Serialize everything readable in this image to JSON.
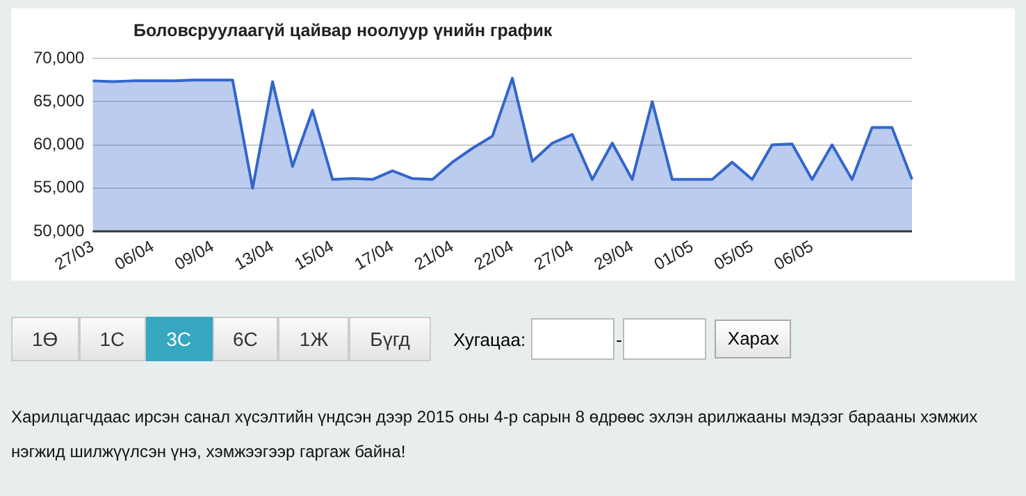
{
  "chart_data": {
    "type": "area",
    "title": "Боловсруулаагүй цайвар ноолуур үнийн график",
    "categories": [
      "27/03",
      null,
      null,
      "06/04",
      null,
      null,
      "09/04",
      null,
      null,
      "13/04",
      null,
      null,
      "15/04",
      null,
      null,
      "17/04",
      null,
      null,
      "21/04",
      null,
      null,
      "22/04",
      null,
      null,
      "27/04",
      null,
      null,
      "29/04",
      null,
      null,
      "01/05",
      null,
      null,
      "05/05",
      null,
      null,
      "06/05",
      null,
      null,
      null,
      null,
      null
    ],
    "series": [
      {
        "color": "#3366cc",
        "values": [
          67400,
          67300,
          67400,
          67400,
          67400,
          67500,
          67500,
          67500,
          55000,
          67300,
          57500,
          64000,
          56000,
          56100,
          56000,
          57000,
          56100,
          56000,
          58000,
          59600,
          61000,
          67700,
          58100,
          60200,
          61200,
          56000,
          60200,
          56000,
          65000,
          56000,
          56000,
          56000,
          58000,
          56000,
          60000,
          60100,
          56000,
          60000,
          56000,
          62000,
          62000,
          56000
        ]
      }
    ],
    "ylim": [
      50000,
      70000
    ],
    "yticks": [
      {
        "value": 50000,
        "label": "50,000"
      },
      {
        "value": 55000,
        "label": "55,000"
      },
      {
        "value": 60000,
        "label": "60,000"
      },
      {
        "value": 65000,
        "label": "65,000"
      },
      {
        "value": 70000,
        "label": "70,000"
      }
    ],
    "grid": "y",
    "legend": false,
    "marker": "none",
    "line_style": "solid",
    "annotations": [
      "1Ө",
      "1С",
      "3С",
      "6С",
      "1Ж",
      "Бүгд",
      "Хугацаа:",
      "-",
      "Харах",
      "Харилцагчдаас ирсэн санал хүсэлтийн үндсэн дээр 2015 оны 4-р сарын 8 өдрөөс эхлэн арилжааны мэдээг барааны хэмжих нэгжид шилжүүлсэн үнэ, хэмжээгээр гаргаж байна!"
    ]
  }
}
